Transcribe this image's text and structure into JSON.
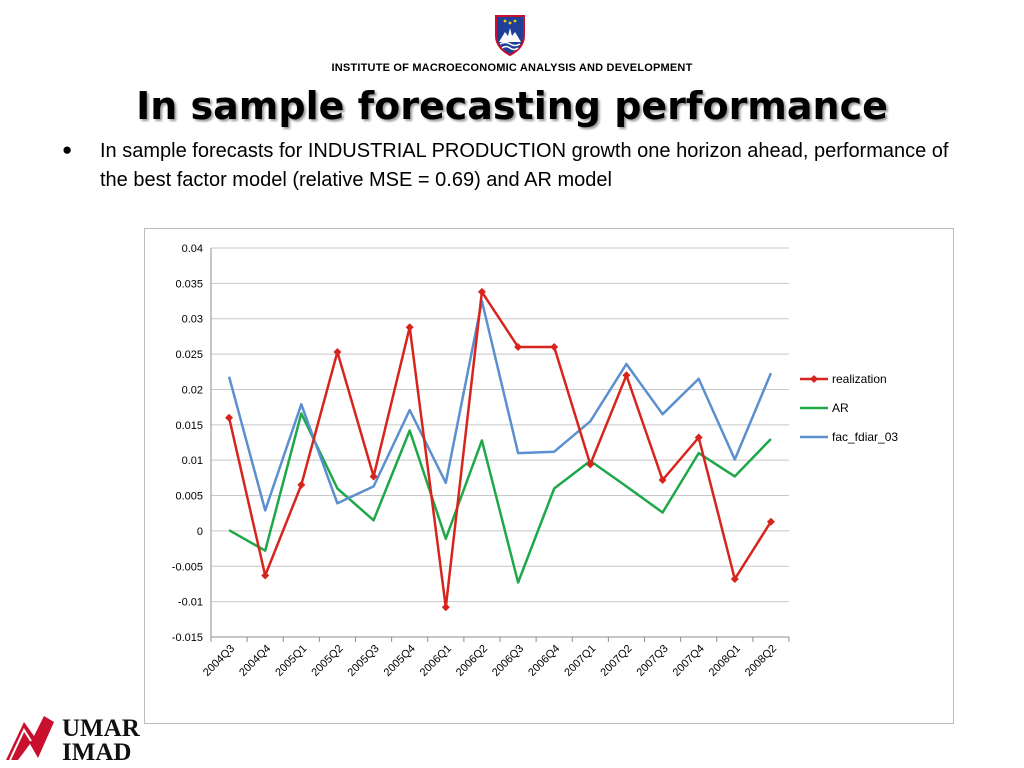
{
  "header": {
    "institute": "INSTITUTE OF MACROECONOMIC ANALYSIS AND DEVELOPMENT",
    "title": "In sample forecasting performance",
    "crest_icon": "slovenia-coat-of-arms-icon"
  },
  "bullet": {
    "marker": "●",
    "text": "In sample forecasts for INDUSTRIAL PRODUCTION growth one horizon ahead, performance of the best factor model (relative MSE = 0.69) and AR model"
  },
  "logo": {
    "line1": "UMAR",
    "line2": "IMAD",
    "color": "#c8102e"
  },
  "chart_data": {
    "type": "line",
    "categories": [
      "2004Q3",
      "2004Q4",
      "2005Q1",
      "2005Q2",
      "2005Q3",
      "2005Q4",
      "2006Q1",
      "2006Q2",
      "2006Q3",
      "2006Q4",
      "2007Q1",
      "2007Q2",
      "2007Q3",
      "2007Q4",
      "2008Q1",
      "2008Q2"
    ],
    "ylim": [
      -0.015,
      0.04
    ],
    "yticks": [
      "0.04",
      "0.035",
      "0.03",
      "0.025",
      "0.02",
      "0.015",
      "0.01",
      "0.005",
      "0",
      "-0.005",
      "-0.01",
      "-0.015"
    ],
    "grid": true,
    "legend_position": "right",
    "series": [
      {
        "name": "realization",
        "color": "#d7251d",
        "marker": "diamond",
        "values": [
          0.016,
          -0.0063,
          0.0065,
          0.0253,
          0.0077,
          0.0288,
          -0.0108,
          0.0338,
          0.026,
          0.026,
          0.0094,
          0.022,
          0.0072,
          0.0132,
          -0.0068,
          0.0013
        ]
      },
      {
        "name": "AR",
        "color": "#1fa84a",
        "marker": "none",
        "values": [
          0.0001,
          -0.0028,
          0.0166,
          0.006,
          0.0015,
          0.0142,
          -0.0011,
          0.0128,
          -0.0073,
          0.006,
          0.0099,
          0.0063,
          0.0026,
          0.011,
          0.0077,
          0.013
        ]
      },
      {
        "name": "fac_fdiar_03",
        "color": "#5b8fd0",
        "marker": "none",
        "values": [
          0.0218,
          0.0029,
          0.0179,
          0.0039,
          0.0063,
          0.0171,
          0.0068,
          0.0325,
          0.011,
          0.0112,
          0.0155,
          0.0236,
          0.0165,
          0.0215,
          0.0101,
          0.0223
        ]
      }
    ]
  }
}
